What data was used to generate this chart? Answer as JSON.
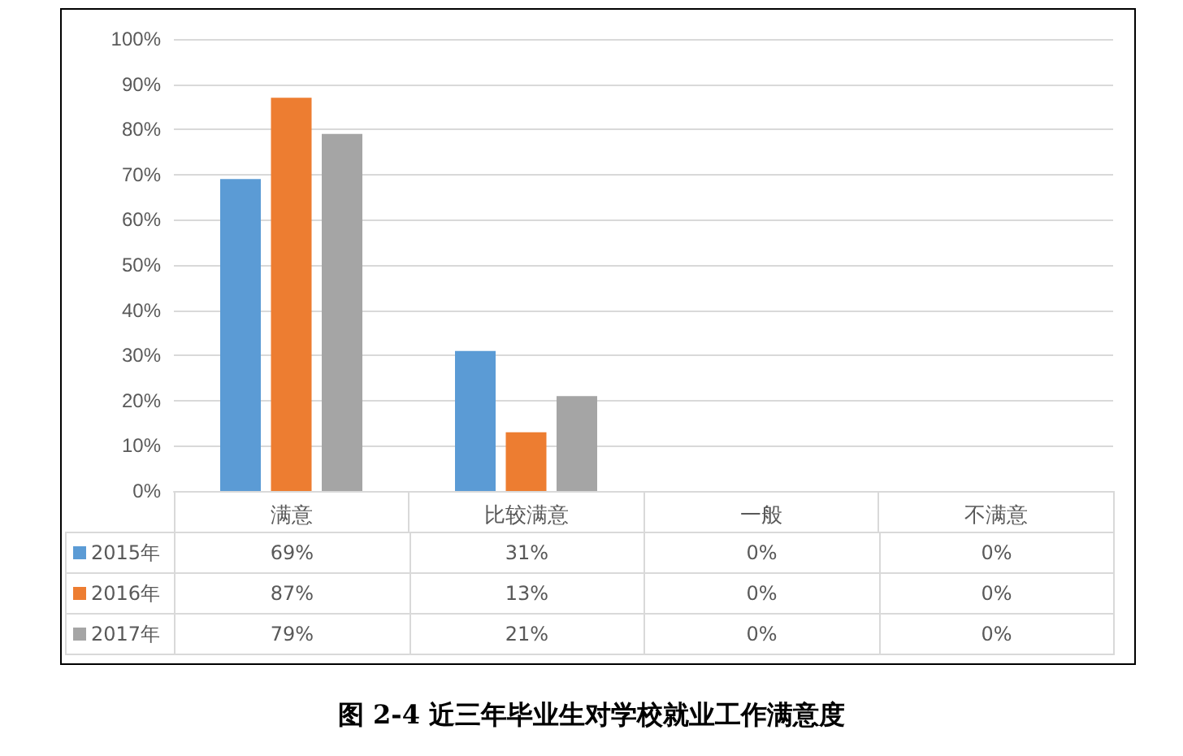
{
  "chart_data": {
    "type": "bar",
    "title": "图 2-4 近三年毕业生对学校就业工作满意度",
    "categories": [
      "满意",
      "比较满意",
      "一般",
      "不满意"
    ],
    "series": [
      {
        "name": "2015年",
        "color": "#5b9bd5",
        "values": [
          69,
          31,
          0,
          0
        ],
        "value_labels": [
          "69%",
          "31%",
          "0%",
          "0%"
        ]
      },
      {
        "name": "2016年",
        "color": "#ed7d31",
        "values": [
          87,
          13,
          0,
          0
        ],
        "value_labels": [
          "87%",
          "13%",
          "0%",
          "0%"
        ]
      },
      {
        "name": "2017年",
        "color": "#a5a5a5",
        "values": [
          79,
          21,
          0,
          0
        ],
        "value_labels": [
          "79%",
          "21%",
          "0%",
          "0%"
        ]
      }
    ],
    "ylim": [
      0,
      100
    ],
    "yticks": [
      {
        "value": 0,
        "label": "0%"
      },
      {
        "value": 10,
        "label": "10%"
      },
      {
        "value": 20,
        "label": "20%"
      },
      {
        "value": 30,
        "label": "30%"
      },
      {
        "value": 40,
        "label": "40%"
      },
      {
        "value": 50,
        "label": "50%"
      },
      {
        "value": 60,
        "label": "60%"
      },
      {
        "value": 70,
        "label": "70%"
      },
      {
        "value": 80,
        "label": "80%"
      },
      {
        "value": 90,
        "label": "90%"
      },
      {
        "value": 100,
        "label": "100%"
      }
    ],
    "grid": "y",
    "legend": "bottom"
  }
}
